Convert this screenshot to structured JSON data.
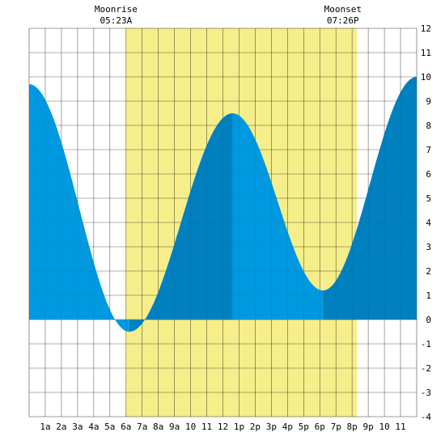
{
  "chart_data": {
    "type": "area",
    "title": "",
    "xlabel": "",
    "ylabel": "",
    "xlim": [
      0,
      24
    ],
    "ylim": [
      -4,
      12
    ],
    "y_ticks": [
      12,
      11,
      10,
      9,
      8,
      7,
      6,
      5,
      4,
      3,
      2,
      1,
      0,
      -1,
      -2,
      -3,
      -4
    ],
    "x_ticks": [
      {
        "hour": 1,
        "label": "1a"
      },
      {
        "hour": 2,
        "label": "2a"
      },
      {
        "hour": 3,
        "label": "3a"
      },
      {
        "hour": 4,
        "label": "4a"
      },
      {
        "hour": 5,
        "label": "5a"
      },
      {
        "hour": 6,
        "label": "6a"
      },
      {
        "hour": 7,
        "label": "7a"
      },
      {
        "hour": 8,
        "label": "8a"
      },
      {
        "hour": 9,
        "label": "9a"
      },
      {
        "hour": 10,
        "label": "10"
      },
      {
        "hour": 11,
        "label": "11"
      },
      {
        "hour": 12,
        "label": "12"
      },
      {
        "hour": 13,
        "label": "1p"
      },
      {
        "hour": 14,
        "label": "2p"
      },
      {
        "hour": 15,
        "label": "3p"
      },
      {
        "hour": 16,
        "label": "4p"
      },
      {
        "hour": 17,
        "label": "5p"
      },
      {
        "hour": 18,
        "label": "6p"
      },
      {
        "hour": 19,
        "label": "7p"
      },
      {
        "hour": 20,
        "label": "8p"
      },
      {
        "hour": 21,
        "label": "9p"
      },
      {
        "hour": 22,
        "label": "10"
      },
      {
        "hour": 23,
        "label": "11"
      }
    ],
    "grid": true,
    "daylight": {
      "start": 6.0,
      "end": 20.3
    },
    "moon_events": [
      {
        "name": "Moonrise",
        "time": "05:23A",
        "hour": 5.38
      },
      {
        "name": "Moonset",
        "time": "07:26P",
        "hour": 19.43
      }
    ],
    "tide_extremes": [
      {
        "hour": 0.0,
        "height": 9.7,
        "kind": "high"
      },
      {
        "hour": 6.2,
        "height": -0.5,
        "kind": "low"
      },
      {
        "hour": 12.6,
        "height": 8.5,
        "kind": "high"
      },
      {
        "hour": 18.2,
        "height": 1.2,
        "kind": "low"
      },
      {
        "hour": 24.0,
        "height": 10.0,
        "kind": "high"
      }
    ],
    "colors": {
      "falling": "#0099e0",
      "rising": "#0080bf",
      "daylight": "#f5ee8a",
      "grid": "#000000",
      "background": "#ffffff"
    }
  }
}
